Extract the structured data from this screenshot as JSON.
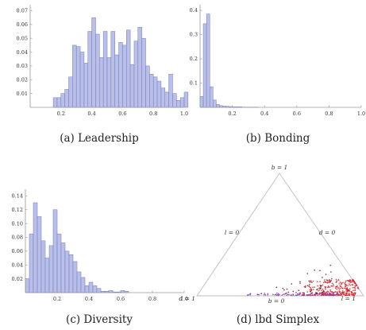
{
  "colors": {
    "bar_fill": "#b9bfe6",
    "bar_stroke": "#6f78c4",
    "axis": "#9a9a9a",
    "triangle": "#bdbdbd",
    "point_red": "#d8242c",
    "point_purple": "#8b3fa4",
    "point_dark": "#6a1b1b"
  },
  "chart_data": [
    {
      "id": "a",
      "type": "bar",
      "caption": "(a) Leadership",
      "xticks": [
        "0.2",
        "0.4",
        "0.6",
        "0.8",
        "1.0"
      ],
      "xtick_values": [
        0.2,
        0.4,
        0.6,
        0.8,
        1.0
      ],
      "yticks": [
        "0.01",
        "0.02",
        "0.03",
        "0.04",
        "0.05",
        "0.06",
        "0.07"
      ],
      "ytick_values": [
        0.01,
        0.02,
        0.03,
        0.04,
        0.05,
        0.06,
        0.07
      ],
      "xlim": [
        0.0,
        1.0
      ],
      "ylim": [
        0,
        0.072
      ],
      "bin_start": 0.15,
      "bin_width": 0.025,
      "values": [
        0.007,
        0.007,
        0.01,
        0.013,
        0.022,
        0.045,
        0.044,
        0.04,
        0.032,
        0.055,
        0.065,
        0.053,
        0.036,
        0.055,
        0.036,
        0.055,
        0.038,
        0.047,
        0.045,
        0.056,
        0.031,
        0.048,
        0.058,
        0.05,
        0.03,
        0.024,
        0.022,
        0.019,
        0.014,
        0.011,
        0.024,
        0.01,
        0.005,
        0.007,
        0.011
      ]
    },
    {
      "id": "b",
      "type": "bar",
      "caption": "(b) Bonding",
      "xticks": [
        "0.2",
        "0.4",
        "0.6",
        "0.8",
        "1.0"
      ],
      "xtick_values": [
        0.2,
        0.4,
        0.6,
        0.8,
        1.0
      ],
      "yticks": [
        "0.1",
        "0.2",
        "0.3",
        "0.4"
      ],
      "ytick_values": [
        0.1,
        0.2,
        0.3,
        0.4
      ],
      "xlim": [
        0.0,
        1.0
      ],
      "ylim": [
        0,
        0.41
      ],
      "bin_start": 0.0,
      "bin_width": 0.02,
      "values": [
        0.045,
        0.345,
        0.385,
        0.085,
        0.03,
        0.012,
        0.007,
        0.005,
        0.004,
        0.003,
        0.002,
        0.002,
        0.002,
        0.001,
        0.001,
        0.001,
        0.001,
        0.001
      ]
    },
    {
      "id": "c",
      "type": "bar",
      "caption": "(c) Diversity",
      "xticks": [
        "0.2",
        "0.4",
        "0.6",
        "0.8",
        "1.0"
      ],
      "xtick_values": [
        0.2,
        0.4,
        0.6,
        0.8,
        1.0
      ],
      "yticks": [
        "0.02",
        "0.04",
        "0.06",
        "0.08",
        "0.10",
        "0.12",
        "0.14"
      ],
      "ytick_values": [
        0.02,
        0.04,
        0.06,
        0.08,
        0.1,
        0.12,
        0.14
      ],
      "xlim": [
        0.0,
        1.0
      ],
      "ylim": [
        0,
        0.145
      ],
      "bin_start": 0.0,
      "bin_width": 0.025,
      "values": [
        0.02,
        0.085,
        0.13,
        0.11,
        0.075,
        0.05,
        0.068,
        0.12,
        0.085,
        0.072,
        0.06,
        0.055,
        0.045,
        0.03,
        0.022,
        0.01,
        0.015,
        0.01,
        0.006,
        0.002,
        0.002,
        0.003,
        0.001,
        0.001,
        0.003,
        0.002
      ]
    },
    {
      "id": "d",
      "type": "scatter",
      "caption": "(d) lbd Simplex",
      "vertex_labels": {
        "top": "b = 1",
        "left": "d = 1",
        "right": "l = 1"
      },
      "edge_labels": {
        "left": "l = 0",
        "right": "d = 0",
        "bottom": "b = 0"
      },
      "clusters": [
        {
          "name": "",
          "color": "point_red",
          "count": 320,
          "b_range": [
            0.0,
            0.13
          ],
          "l_range": [
            0.55,
            0.95
          ]
        },
        {
          "name": "",
          "color": "point_purple",
          "count": 110,
          "b_range": [
            0.0,
            0.02
          ],
          "l_range": [
            0.25,
            0.85
          ]
        },
        {
          "name": "",
          "color": "point_dark",
          "count": 40,
          "b_range": [
            0.02,
            0.25
          ],
          "l_range": [
            0.4,
            0.75
          ]
        }
      ]
    }
  ]
}
